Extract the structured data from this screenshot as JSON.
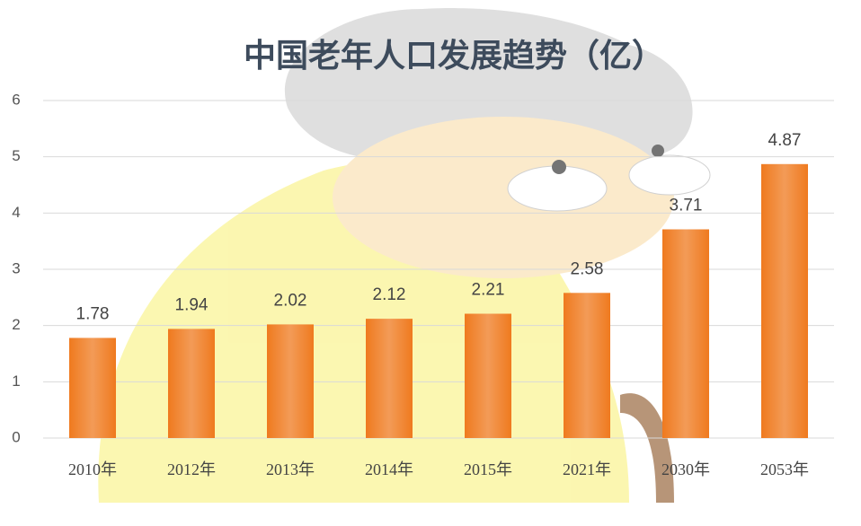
{
  "chart_data": {
    "type": "bar",
    "title": "中国老年人口发展趋势（亿）",
    "categories": [
      "2010年",
      "2012年",
      "2013年",
      "2014年",
      "2015年",
      "2021年",
      "2030年",
      "2053年"
    ],
    "values": [
      1.78,
      1.94,
      2.02,
      2.12,
      2.21,
      2.58,
      3.71,
      4.87
    ],
    "color": "#ef7a1f",
    "ylim": [
      0,
      6
    ],
    "yticks": [
      0,
      1,
      2,
      3,
      4,
      5,
      6
    ],
    "grid": true
  }
}
